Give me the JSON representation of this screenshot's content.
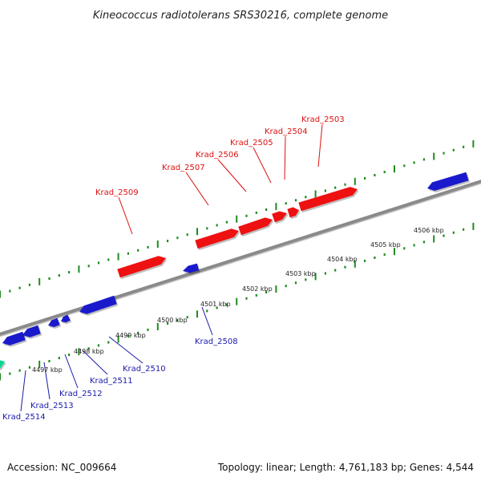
{
  "title": "Kineococcus radiotolerans SRS30216, complete genome",
  "footer": {
    "accession": "Accession: NC_009664",
    "topology": "Topology: linear; Length: 4,761,183 bp; Genes: 4,544"
  },
  "colors": {
    "forward_gene": "#ee1111",
    "reverse_gene": "#1a1acc",
    "other_gene": "#00d890",
    "backbone": "#8a8a8a",
    "tick": "#1f8a1f",
    "forward_label": "#dd1111",
    "reverse_label": "#1a1aaa"
  },
  "kbp_labels": [
    "4497 kbp",
    "4498 kbp",
    "4499 kbp",
    "4500 kbp",
    "4501 kbp",
    "4502 kbp",
    "4503 kbp",
    "4504 kbp",
    "4505 kbp",
    "4506 kbp"
  ],
  "genes_forward": [
    "Krad_2509",
    "Krad_2507",
    "Krad_2506",
    "Krad_2505",
    "Krad_2504",
    "Krad_2503"
  ],
  "genes_reverse": [
    "Krad_2508",
    "Krad_2510",
    "Krad_2511",
    "Krad_2512",
    "Krad_2513",
    "Krad_2514"
  ]
}
